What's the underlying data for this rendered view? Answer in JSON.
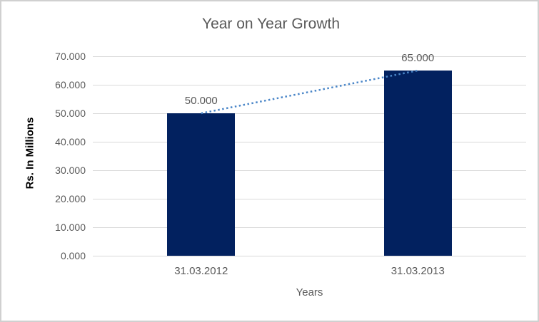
{
  "chart_data": {
    "type": "bar",
    "title": "Year on Year Growth",
    "categories": [
      "31.03.2012",
      "31.03.2013"
    ],
    "values": [
      50.0,
      65.0
    ],
    "data_labels": [
      "50.000",
      "65.000"
    ],
    "xlabel": "Years",
    "ylabel": "Rs. In Millions",
    "ylim": [
      0,
      70
    ],
    "ytick_step": 10,
    "ytick_labels": [
      "0.000",
      "10.000",
      "20.000",
      "30.000",
      "40.000",
      "50.000",
      "60.000",
      "70.000"
    ],
    "grid": true,
    "legend": "none",
    "trendline": {
      "style": "dotted",
      "connects": "bar tops"
    },
    "colors": {
      "bar": "#02215f",
      "trendline": "#4a86c8",
      "gridline": "#d9d9d9",
      "text": "#595959",
      "axis_title_text": "#000000",
      "frame_border": "#d0d0d0",
      "background": "#ffffff"
    }
  }
}
